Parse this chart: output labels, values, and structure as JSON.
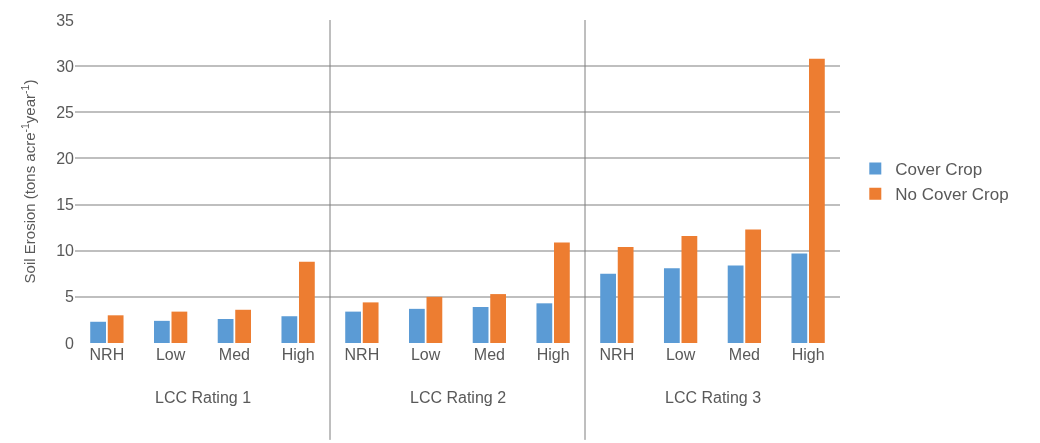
{
  "chart_data": {
    "type": "bar",
    "ylabel": "Soil Erosion (tons acre$^{-1}$year$^{-1}$)",
    "categories": [
      "NRH",
      "Low",
      "Med",
      "High",
      "NRH",
      "Low",
      "Med",
      "High",
      "NRH",
      "Low",
      "Med",
      "High"
    ],
    "annotations": [
      "LCC Rating 1",
      "LCC Rating 2",
      "LCC Rating 3"
    ],
    "series": [
      {
        "name": "Cover Crop",
        "color": "#5b9bd5",
        "values": [
          2.3,
          2.4,
          2.6,
          2.9,
          3.4,
          3.7,
          3.9,
          4.3,
          7.5,
          8.1,
          8.4,
          9.7
        ]
      },
      {
        "name": "No Cover Crop",
        "color": "#ed7d31",
        "values": [
          3.0,
          3.4,
          3.6,
          8.8,
          4.4,
          5.0,
          5.3,
          10.9,
          10.4,
          11.6,
          12.3,
          30.8
        ]
      }
    ],
    "ylim": [
      0,
      35
    ],
    "yticks": [
      0,
      5,
      10,
      15,
      20,
      25,
      30,
      35
    ],
    "grid": "y",
    "legend": "right"
  }
}
